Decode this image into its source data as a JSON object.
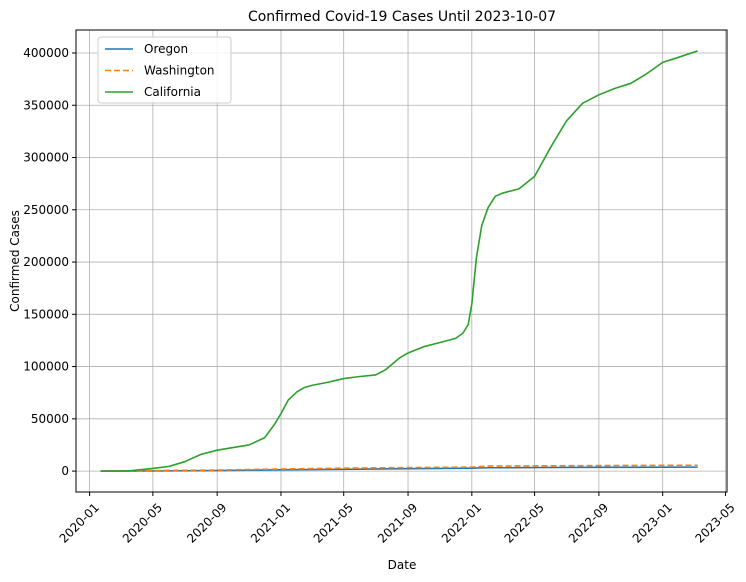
{
  "chart_data": {
    "type": "line",
    "title": "Confirmed Covid-19 Cases Until 2023-10-07",
    "xlabel": "Date",
    "ylabel": "Confirmed Cases",
    "xlim": [
      "2019-12-06",
      "2023-05-04"
    ],
    "ylim": [
      -20000,
      422000
    ],
    "grid": true,
    "legend_position": "upper-left",
    "x_ticks": [
      "2020-01",
      "2020-05",
      "2020-09",
      "2021-01",
      "2021-05",
      "2021-09",
      "2022-01",
      "2022-05",
      "2022-09",
      "2023-01",
      "2023-05"
    ],
    "y_ticks": [
      0,
      50000,
      100000,
      150000,
      200000,
      250000,
      300000,
      350000,
      400000
    ],
    "series": [
      {
        "name": "Oregon",
        "color": "#1f77b4",
        "dash": "solid",
        "points": [
          [
            "2020-01-22",
            0
          ],
          [
            "2020-05-01",
            100
          ],
          [
            "2020-09-01",
            500
          ],
          [
            "2021-01-01",
            1200
          ],
          [
            "2021-05-01",
            1700
          ],
          [
            "2021-09-01",
            2300
          ],
          [
            "2022-01-01",
            2800
          ],
          [
            "2022-02-01",
            3200
          ],
          [
            "2022-05-01",
            3400
          ],
          [
            "2022-09-01",
            3600
          ],
          [
            "2023-01-01",
            3700
          ],
          [
            "2023-03-09",
            3800
          ]
        ]
      },
      {
        "name": "Washington",
        "color": "#ff7f0e",
        "dash": "dashed",
        "points": [
          [
            "2020-01-22",
            0
          ],
          [
            "2020-05-01",
            500
          ],
          [
            "2020-09-01",
            1000
          ],
          [
            "2021-01-01",
            2000
          ],
          [
            "2021-05-01",
            2800
          ],
          [
            "2021-09-01",
            3400
          ],
          [
            "2022-01-01",
            3800
          ],
          [
            "2022-02-01",
            4800
          ],
          [
            "2022-05-01",
            5000
          ],
          [
            "2022-09-01",
            5300
          ],
          [
            "2023-01-01",
            5500
          ],
          [
            "2023-03-09",
            5600
          ]
        ]
      },
      {
        "name": "California",
        "color": "#2ca02c",
        "dash": "solid",
        "points": [
          [
            "2020-01-22",
            0
          ],
          [
            "2020-03-15",
            200
          ],
          [
            "2020-04-01",
            1000
          ],
          [
            "2020-05-01",
            2500
          ],
          [
            "2020-06-01",
            4500
          ],
          [
            "2020-07-01",
            9000
          ],
          [
            "2020-08-01",
            16000
          ],
          [
            "2020-09-01",
            20000
          ],
          [
            "2020-10-01",
            22500
          ],
          [
            "2020-11-01",
            25000
          ],
          [
            "2020-12-01",
            32000
          ],
          [
            "2020-12-20",
            45000
          ],
          [
            "2021-01-01",
            55000
          ],
          [
            "2021-01-15",
            68000
          ],
          [
            "2021-02-01",
            76000
          ],
          [
            "2021-02-15",
            80000
          ],
          [
            "2021-03-01",
            82000
          ],
          [
            "2021-04-01",
            85000
          ],
          [
            "2021-05-01",
            88500
          ],
          [
            "2021-06-01",
            90500
          ],
          [
            "2021-07-01",
            92000
          ],
          [
            "2021-07-20",
            97000
          ],
          [
            "2021-08-15",
            108000
          ],
          [
            "2021-09-01",
            113000
          ],
          [
            "2021-10-01",
            119000
          ],
          [
            "2021-11-01",
            123000
          ],
          [
            "2021-12-01",
            127000
          ],
          [
            "2021-12-15",
            132000
          ],
          [
            "2021-12-25",
            140000
          ],
          [
            "2022-01-01",
            160000
          ],
          [
            "2022-01-10",
            205000
          ],
          [
            "2022-01-20",
            235000
          ],
          [
            "2022-02-01",
            252000
          ],
          [
            "2022-02-15",
            263000
          ],
          [
            "2022-03-01",
            266000
          ],
          [
            "2022-04-01",
            270000
          ],
          [
            "2022-05-01",
            282000
          ],
          [
            "2022-06-01",
            310000
          ],
          [
            "2022-07-01",
            335000
          ],
          [
            "2022-08-01",
            352000
          ],
          [
            "2022-09-01",
            360000
          ],
          [
            "2022-10-01",
            366000
          ],
          [
            "2022-11-01",
            371000
          ],
          [
            "2022-12-01",
            380000
          ],
          [
            "2023-01-01",
            391000
          ],
          [
            "2023-02-01",
            396000
          ],
          [
            "2023-03-09",
            402000
          ]
        ]
      }
    ]
  }
}
